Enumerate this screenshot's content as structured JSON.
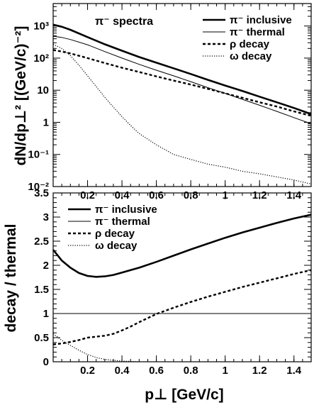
{
  "chart_data": [
    {
      "type": "line",
      "panel": "top",
      "title": "π⁻ spectra",
      "xlabel": "",
      "ylabel": "dN/dp⊥² [(GeV/c)⁻²]",
      "yscale": "log",
      "xlim": [
        0.0,
        1.5
      ],
      "ylim": [
        0.01,
        5000
      ],
      "grid": false,
      "legend_position": "top-right",
      "xticks": [
        {
          "v": 0.2,
          "label": "0.2"
        },
        {
          "v": 0.4,
          "label": "0.4"
        },
        {
          "v": 0.6,
          "label": "0.6"
        },
        {
          "v": 0.8,
          "label": "0.8"
        },
        {
          "v": 1.0,
          "label": "1"
        },
        {
          "v": 1.2,
          "label": "1.2"
        },
        {
          "v": 1.4,
          "label": "1.4"
        }
      ],
      "yticks": [
        {
          "v": 0.01,
          "label": "10⁻²"
        },
        {
          "v": 0.1,
          "label": "10⁻¹"
        },
        {
          "v": 1,
          "label": "1"
        },
        {
          "v": 10,
          "label": "10"
        },
        {
          "v": 100,
          "label": "10²"
        },
        {
          "v": 1000,
          "label": "10³"
        }
      ],
      "series": [
        {
          "name": "π⁻ inclusive",
          "style": "thick-solid",
          "x": [
            0.0,
            0.05,
            0.1,
            0.2,
            0.3,
            0.4,
            0.5,
            0.6,
            0.7,
            0.8,
            0.9,
            1.0,
            1.1,
            1.2,
            1.3,
            1.4,
            1.5
          ],
          "y": [
            1100,
            950,
            760,
            450,
            270,
            170,
            108,
            72,
            48,
            32,
            21,
            14,
            9.5,
            6.3,
            4.2,
            2.8,
            1.8
          ]
        },
        {
          "name": "π⁻ thermal",
          "style": "thin-solid",
          "x": [
            0.0,
            0.05,
            0.1,
            0.2,
            0.3,
            0.4,
            0.5,
            0.6,
            0.7,
            0.8,
            0.9,
            1.0,
            1.1,
            1.2,
            1.3,
            1.4,
            1.5
          ],
          "y": [
            480,
            440,
            380,
            260,
            160,
            100,
            64,
            42,
            28,
            18.5,
            12,
            8,
            5.2,
            3.4,
            2.2,
            1.4,
            0.9
          ]
        },
        {
          "name": "ρ decay",
          "style": "thick-dashed",
          "x": [
            0.0,
            0.05,
            0.1,
            0.2,
            0.3,
            0.4,
            0.5,
            0.6,
            0.7,
            0.8,
            0.9,
            1.0,
            1.1,
            1.2,
            1.3,
            1.4,
            1.5
          ],
          "y": [
            180,
            160,
            140,
            100,
            70,
            50,
            37,
            27,
            20,
            15,
            11,
            8,
            5.8,
            4.2,
            3.1,
            2.2,
            1.6
          ]
        },
        {
          "name": "ω decay",
          "style": "dotted",
          "x": [
            0.0,
            0.05,
            0.1,
            0.15,
            0.2,
            0.25,
            0.3,
            0.35,
            0.4,
            0.45,
            0.5,
            0.6,
            0.7,
            0.8,
            0.9,
            1.0,
            1.1,
            1.2,
            1.3,
            1.4,
            1.5
          ],
          "y": [
            270,
            200,
            120,
            60,
            28,
            13,
            6,
            3,
            1.5,
            0.8,
            0.45,
            0.2,
            0.1,
            0.07,
            0.05,
            0.04,
            0.03,
            0.025,
            0.02,
            0.016,
            0.012
          ]
        }
      ]
    },
    {
      "type": "line",
      "panel": "bottom",
      "xlabel": "p⊥ [GeV/c]",
      "ylabel": "decay / thermal",
      "yscale": "linear",
      "xlim": [
        0.0,
        1.5
      ],
      "ylim": [
        0.0,
        3.5
      ],
      "grid": false,
      "legend_position": "top-left",
      "xticks": [
        {
          "v": 0.2,
          "label": "0.2"
        },
        {
          "v": 0.4,
          "label": "0.4"
        },
        {
          "v": 0.6,
          "label": "0.6"
        },
        {
          "v": 0.8,
          "label": "0.8"
        },
        {
          "v": 1.0,
          "label": "1"
        },
        {
          "v": 1.2,
          "label": "1.2"
        },
        {
          "v": 1.4,
          "label": "1.4"
        }
      ],
      "yticks": [
        {
          "v": 0,
          "label": "0"
        },
        {
          "v": 0.5,
          "label": "0.5"
        },
        {
          "v": 1,
          "label": "1"
        },
        {
          "v": 1.5,
          "label": "1.5"
        },
        {
          "v": 2,
          "label": "2"
        },
        {
          "v": 2.5,
          "label": "2.5"
        },
        {
          "v": 3,
          "label": "3"
        },
        {
          "v": 3.5,
          "label": "3.5"
        }
      ],
      "series": [
        {
          "name": "π⁻ inclusive",
          "style": "thick-solid",
          "x": [
            0.0,
            0.05,
            0.1,
            0.15,
            0.2,
            0.25,
            0.3,
            0.35,
            0.4,
            0.5,
            0.6,
            0.7,
            0.8,
            0.9,
            1.0,
            1.1,
            1.2,
            1.3,
            1.4,
            1.5
          ],
          "y": [
            2.32,
            2.1,
            1.95,
            1.84,
            1.78,
            1.76,
            1.77,
            1.8,
            1.85,
            1.95,
            2.07,
            2.2,
            2.33,
            2.45,
            2.57,
            2.68,
            2.78,
            2.88,
            2.97,
            3.05
          ]
        },
        {
          "name": "π⁻ thermal",
          "style": "thin-solid",
          "x": [
            0.0,
            1.5
          ],
          "y": [
            1.0,
            1.0
          ]
        },
        {
          "name": "ρ decay",
          "style": "thick-dashed",
          "x": [
            0.0,
            0.05,
            0.1,
            0.15,
            0.2,
            0.25,
            0.3,
            0.35,
            0.4,
            0.45,
            0.5,
            0.6,
            0.7,
            0.8,
            0.9,
            1.0,
            1.1,
            1.2,
            1.3,
            1.4,
            1.5
          ],
          "y": [
            0.36,
            0.38,
            0.41,
            0.45,
            0.5,
            0.52,
            0.54,
            0.58,
            0.65,
            0.73,
            0.82,
            0.99,
            1.12,
            1.24,
            1.35,
            1.45,
            1.55,
            1.64,
            1.73,
            1.82,
            1.9
          ]
        },
        {
          "name": "ω decay",
          "style": "dotted",
          "x": [
            0.0,
            0.03,
            0.06,
            0.1,
            0.15,
            0.2,
            0.25,
            0.3,
            0.35,
            0.4,
            0.45,
            0.5
          ],
          "y": [
            0.58,
            0.5,
            0.42,
            0.34,
            0.24,
            0.15,
            0.09,
            0.05,
            0.03,
            0.015,
            0.007,
            0.0
          ]
        }
      ]
    }
  ],
  "colors": {
    "lines": "#000000",
    "background": "#ffffff"
  }
}
